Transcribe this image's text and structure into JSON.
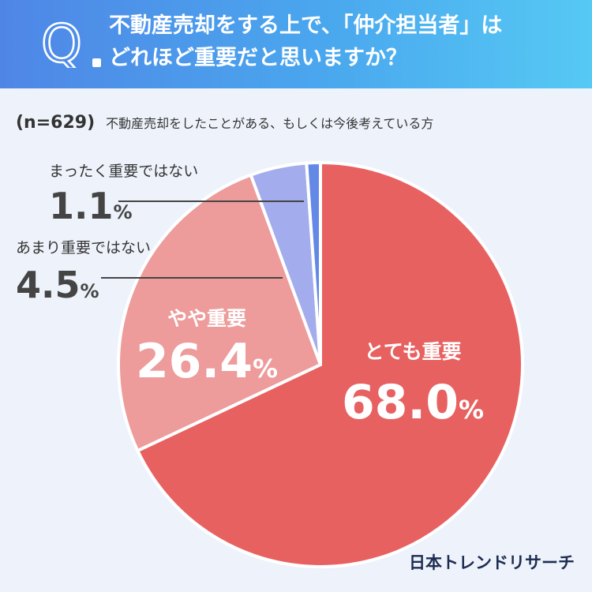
{
  "header": {
    "q_letter": "Q",
    "title_line1": "不動産売却をする上で、「仲介担当者」は",
    "title_line2": "どれほど重要だと思いますか？"
  },
  "subtitle": {
    "n": "(n=629)",
    "text": "不動産売却をしたことがある、もしくは今後考えている方"
  },
  "brand": "日本トレンドリサーチ",
  "colors": {
    "header_start": "#4f86e6",
    "header_end": "#56c9f4",
    "background": "#eef3fb"
  },
  "chart_data": {
    "type": "pie",
    "start": "12 o'clock",
    "direction": "clockwise",
    "slices": [
      {
        "label": "とても重要",
        "value": 68.0,
        "display": "68.0",
        "unit": "%",
        "color": "#e86161"
      },
      {
        "label": "やや重要",
        "value": 26.4,
        "display": "26.4",
        "unit": "%",
        "color": "#ed9b9b"
      },
      {
        "label": "あまり重要ではない",
        "value": 4.5,
        "display": "4.5",
        "unit": "%",
        "color": "#a3acec"
      },
      {
        "label": "まったく重要ではない",
        "value": 1.1,
        "display": "1.1",
        "unit": "%",
        "color": "#6388e6"
      }
    ]
  }
}
